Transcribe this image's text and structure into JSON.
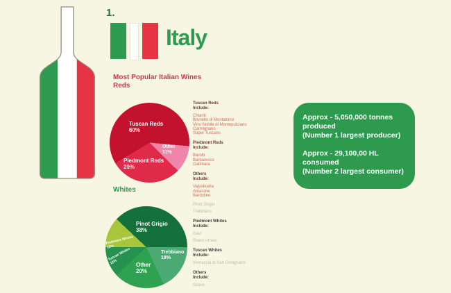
{
  "page": {
    "background": "#f7f6e2"
  },
  "header": {
    "rank": "1.",
    "country": "Italy",
    "flag_colors": {
      "green": "#2f9b50",
      "white": "#ffffff",
      "red": "#e63444"
    }
  },
  "bottle": {
    "green": "#2f9b50",
    "white": "#ffffff",
    "red": "#e63444",
    "outline": "#8e8e7e"
  },
  "reds_section": {
    "title": "Most Popular Italian Wines",
    "subtitle": "Reds",
    "title_color": "#c2404e",
    "list": [
      {
        "header": "Tuscan Reds\nInclude:",
        "items": [
          "Chianti",
          "Brunello di Montalcino",
          "Vino Nobile di Montepulciano",
          "Carmignano",
          "Super Tuscans"
        ]
      },
      {
        "header": "Piedmont Reds\nInclude:",
        "items": [
          "Barolo",
          "Barbaresco",
          "Gattinara"
        ]
      },
      {
        "header": "Others\nInclude:",
        "items": [
          "Valpolicella",
          "Amarone",
          "Bardolino"
        ]
      }
    ]
  },
  "info_box": {
    "background": "#2d9a4e",
    "paragraphs": [
      "Approx - 5,050,000 tonnes\nproduced\n(Number 1 largest producer)",
      "Approx - 29,100,00 HL\nconsumed\n(Number 2 largest consumer)"
    ]
  },
  "whites_section": {
    "title": "Whites",
    "title_color": "#2f9b50",
    "list": [
      {
        "header": "",
        "items": [
          "Pinot Grigio",
          "Trebbiano"
        ]
      },
      {
        "header": "Piedmont Whites\nInclude:",
        "items": [
          "Gavi",
          "Roero Arneis"
        ]
      },
      {
        "header": "Tuscan Whites\nInclude:",
        "items": [
          "Vernaccia di San Gimignano"
        ]
      },
      {
        "header": "Others\nInclude:",
        "items": [
          "Soave"
        ]
      }
    ]
  },
  "chart_data": [
    {
      "type": "pie",
      "title": "Most Popular Italian Wines — Reds",
      "values_unit": "%",
      "start_angle_deg": 95,
      "legend_position": "none",
      "slices": [
        {
          "label": "Other",
          "value": 11,
          "color": "#ef85a8"
        },
        {
          "label": "Piedmont Reds",
          "value": 29,
          "color": "#e02a4a"
        },
        {
          "label": "Tuscan Reds",
          "value": 60,
          "color": "#c2122e"
        }
      ]
    },
    {
      "type": "pie",
      "title": "Most Popular Italian Wines — Whites",
      "values_unit": "%",
      "start_angle_deg": 90,
      "legend_position": "none",
      "slices": [
        {
          "label": "Trebbiano",
          "value": 18,
          "color": "#4ba974"
        },
        {
          "label": "Other",
          "value": 20,
          "color": "#2fa252"
        },
        {
          "label": "Tuscan Whites",
          "value": 12,
          "color": "#279250"
        },
        {
          "label": "Piedmont Whites",
          "value": 12,
          "color": "#a7c63b"
        },
        {
          "label": "Pinot Grigio",
          "value": 38,
          "color": "#15713c"
        }
      ]
    }
  ]
}
